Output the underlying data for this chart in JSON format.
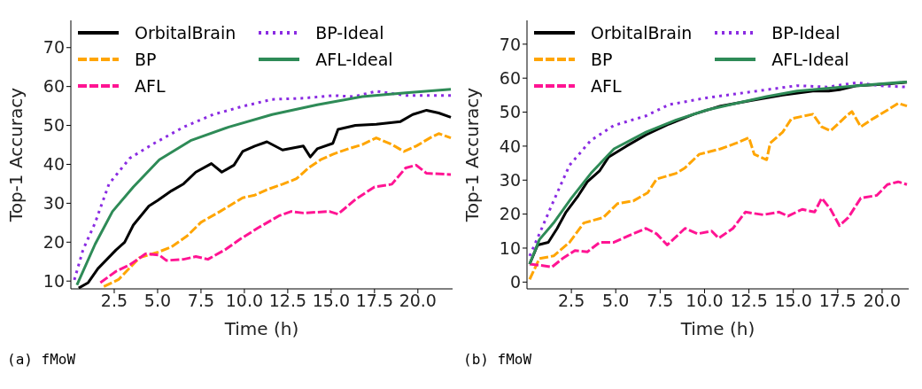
{
  "chart_data": [
    {
      "type": "line",
      "xlabel": "Time (h)",
      "ylabel": "Top-1 Accuracy",
      "legend": "top",
      "annotations": [
        "(a) fMoW"
      ],
      "xlim": [
        0,
        22
      ],
      "xticks": [
        {
          "value": 2.5,
          "label": "2.5"
        },
        {
          "value": 5,
          "label": "5.0"
        },
        {
          "value": 7.5,
          "label": "7.5"
        },
        {
          "value": 10,
          "label": "10.0"
        },
        {
          "value": 12.5,
          "label": "12.5"
        },
        {
          "value": 15,
          "label": "15.0"
        },
        {
          "value": 17.5,
          "label": "17.5"
        },
        {
          "value": 20,
          "label": "20.0"
        }
      ],
      "ylim": [
        8,
        77
      ],
      "yticks": [
        10,
        20,
        30,
        40,
        50,
        60,
        70
      ],
      "marker": "none",
      "series": [
        {
          "name": "OrbitalBrain",
          "color": "#000000",
          "line_style": "solid",
          "x": [
            0.45,
            1.0,
            1.56,
            2.6,
            3.1,
            3.6,
            4.5,
            5.0,
            5.8,
            6.5,
            7.2,
            8.1,
            8.7,
            9.4,
            9.9,
            10.6,
            11.3,
            12.2,
            13.4,
            13.8,
            14.2,
            15.1,
            15.4,
            16.4,
            17.6,
            19.0,
            19.7,
            20.5,
            21.2,
            21.9
          ],
          "values": [
            8.2,
            9.6,
            13.2,
            18,
            20,
            24.4,
            29.3,
            30.7,
            33.2,
            35,
            38,
            40.2,
            38,
            39.8,
            43.3,
            44.7,
            45.8,
            43.7,
            44.7,
            41.9,
            44,
            45.4,
            49,
            50,
            50.3,
            51,
            52.8,
            53.9,
            53.2,
            52.1
          ]
        },
        {
          "name": "BP",
          "color": "#ffa500",
          "line_style": "dashed",
          "x": [
            1.9,
            2.75,
            3.95,
            5.0,
            5.8,
            6.7,
            7.5,
            8.6,
            9.9,
            10.6,
            11.3,
            12.2,
            13.0,
            13.7,
            14.4,
            15.1,
            16.0,
            16.8,
            17.6,
            18.5,
            19.2,
            19.9,
            20.7,
            21.2,
            21.9
          ],
          "values": [
            8.6,
            10.4,
            16,
            17.4,
            18.8,
            21.6,
            25.1,
            27.9,
            31.4,
            32.1,
            33.5,
            34.9,
            36.3,
            39.1,
            41.2,
            42.6,
            44,
            45.1,
            46.8,
            45.1,
            43.3,
            44.7,
            46.8,
            47.9,
            46.8
          ]
        },
        {
          "name": "AFL",
          "color": "#ff1493",
          "line_style": "dashed",
          "x": [
            1.7,
            2.6,
            3.4,
            4.3,
            5.1,
            5.5,
            6.5,
            7.2,
            7.9,
            8.9,
            9.8,
            10.8,
            12.0,
            12.7,
            13.4,
            14.9,
            15.4,
            16.4,
            17.5,
            18.5,
            19.3,
            19.9,
            20.5,
            21.9
          ],
          "values": [
            9.6,
            12.5,
            14.2,
            17,
            16.7,
            15.3,
            15.6,
            16.3,
            15.6,
            18.1,
            20.9,
            23.7,
            26.8,
            27.9,
            27.5,
            27.9,
            27.2,
            31,
            34.2,
            34.9,
            39.1,
            39.8,
            37.7,
            37.4
          ]
        },
        {
          "name": "BP-Ideal",
          "color": "#8a2be2",
          "line_style": "dotted",
          "x": [
            0.2,
            0.7,
            1.4,
            2.2,
            3.4,
            4.8,
            6.5,
            8.2,
            9.9,
            11.6,
            13.4,
            15.1,
            16.3,
            17.6,
            19.3,
            21.9
          ],
          "values": [
            10.3,
            18,
            25,
            35,
            41.6,
            45.4,
            49.6,
            52.8,
            54.9,
            56.7,
            57,
            57.7,
            57.4,
            58.8,
            57.7,
            57.7
          ]
        },
        {
          "name": "AFL-Ideal",
          "color": "#2e8b57",
          "line_style": "solid",
          "x": [
            0.35,
            1.4,
            2.4,
            3.6,
            5.1,
            6.9,
            9.1,
            11.6,
            14.2,
            16.8,
            19.3,
            21.9
          ],
          "values": [
            9,
            19.5,
            27.9,
            34.2,
            41.2,
            46.1,
            49.6,
            52.8,
            55.3,
            57.4,
            58.4,
            59.3
          ]
        }
      ]
    },
    {
      "type": "line",
      "xlabel": "Time (h)",
      "ylabel": "Top-1 Accuracy",
      "legend": "top",
      "annotations": [
        "(b) fMoW"
      ],
      "xlim": [
        0,
        21.5
      ],
      "xticks": [
        {
          "value": 2.5,
          "label": "2.5"
        },
        {
          "value": 5,
          "label": "5.0"
        },
        {
          "value": 7.5,
          "label": "7.5"
        },
        {
          "value": 10,
          "label": "10.0"
        },
        {
          "value": 12.5,
          "label": "12.5"
        },
        {
          "value": 15,
          "label": "15.0"
        },
        {
          "value": 17.5,
          "label": "17.5"
        },
        {
          "value": 20,
          "label": "20.0"
        }
      ],
      "ylim": [
        -2,
        77
      ],
      "yticks": [
        0,
        10,
        20,
        30,
        40,
        50,
        60,
        70
      ],
      "marker": "none",
      "series": [
        {
          "name": "OrbitalBrain",
          "color": "#000000",
          "line_style": "solid",
          "x": [
            0.15,
            0.6,
            1.2,
            1.7,
            2.2,
            2.9,
            3.4,
            4.1,
            4.6,
            5.6,
            6.7,
            8.0,
            9.4,
            10.9,
            12.6,
            14.4,
            16.1,
            17.0,
            17.6,
            18.6,
            20.3,
            21.4
          ],
          "values": [
            5.3,
            10.9,
            11.7,
            15.8,
            20.6,
            25.5,
            29.5,
            32.8,
            36.8,
            40,
            43.3,
            46.5,
            49.4,
            51.8,
            53.4,
            55,
            56.2,
            56.2,
            56.6,
            57.8,
            58.3,
            58.8
          ]
        },
        {
          "name": "BP",
          "color": "#ffa500",
          "line_style": "dashed",
          "x": [
            0.15,
            0.7,
            1.5,
            2.4,
            3.2,
            4.3,
            5.1,
            6.0,
            6.8,
            7.3,
            8.4,
            8.9,
            9.7,
            10.9,
            11.8,
            12.5,
            12.8,
            13.5,
            13.7,
            14.4,
            14.9,
            16.1,
            16.6,
            17.1,
            18.0,
            18.3,
            18.8,
            19.5,
            20.3,
            20.9,
            21.4
          ],
          "values": [
            0.8,
            6.9,
            7.7,
            11.7,
            17.4,
            19,
            23.1,
            23.9,
            26.3,
            30.3,
            32,
            33.6,
            37.6,
            39.2,
            40.9,
            42.5,
            37.6,
            36,
            40.9,
            44.1,
            48.1,
            49.4,
            45.7,
            44.5,
            48.9,
            50.2,
            45.7,
            48.1,
            50.6,
            52.6,
            51.8
          ]
        },
        {
          "name": "AFL",
          "color": "#ff1493",
          "line_style": "dashed",
          "x": [
            0.15,
            0.8,
            1.4,
            2.0,
            2.7,
            3.4,
            4.1,
            4.9,
            5.8,
            6.7,
            7.3,
            7.9,
            8.9,
            9.6,
            10.4,
            10.8,
            11.6,
            12.3,
            13.3,
            14.2,
            14.7,
            15.5,
            16.2,
            16.6,
            17.1,
            17.6,
            18.1,
            18.8,
            19.7,
            20.3,
            20.9,
            21.4
          ],
          "values": [
            5.3,
            4.9,
            4.4,
            6.9,
            9.3,
            8.9,
            11.7,
            11.7,
            13.8,
            15.8,
            14.2,
            10.9,
            15.8,
            14.2,
            15,
            12.9,
            15.8,
            20.6,
            19.8,
            20.6,
            19.4,
            21.4,
            20.6,
            24.7,
            21.4,
            16.6,
            19,
            24.7,
            25.5,
            28.7,
            29.5,
            28.7
          ]
        },
        {
          "name": "BP-Ideal",
          "color": "#8a2be2",
          "line_style": "dotted",
          "x": [
            0.15,
            0.7,
            1.5,
            2.4,
            3.6,
            4.9,
            6.7,
            8.0,
            10.1,
            11.8,
            13.5,
            15.2,
            16.9,
            18.6,
            19.8,
            21.4
          ],
          "values": [
            7.7,
            14.2,
            23.9,
            34.4,
            41.7,
            46.1,
            48.9,
            52.2,
            54.2,
            55.4,
            56.6,
            57.8,
            57.4,
            58.7,
            57.8,
            57.4
          ]
        },
        {
          "name": "AFL-Ideal",
          "color": "#2e8b57",
          "line_style": "solid",
          "x": [
            0.15,
            0.7,
            1.5,
            2.5,
            3.6,
            4.9,
            6.7,
            8.4,
            10.1,
            11.8,
            13.5,
            15.2,
            16.9,
            18.6,
            21.4
          ],
          "values": [
            5.3,
            12.5,
            17.4,
            24.7,
            32,
            39.2,
            44.1,
            47.7,
            50.6,
            52.6,
            54.6,
            56.2,
            57,
            57.8,
            58.9
          ]
        }
      ]
    }
  ]
}
